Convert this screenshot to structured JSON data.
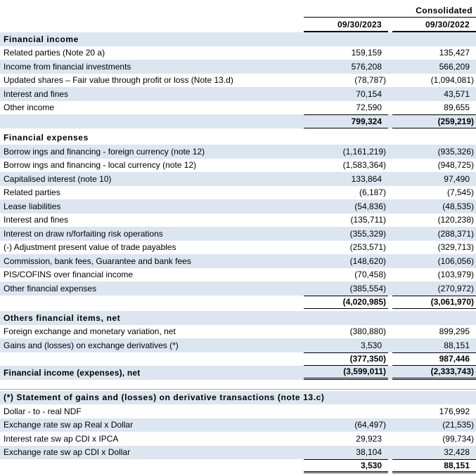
{
  "header": {
    "group_label": "Consolidated",
    "col1": "09/30/2023",
    "col2": "09/30/2022"
  },
  "colors": {
    "band": "#dce6f1",
    "text": "#000000",
    "total_border": "#000000",
    "separator_rule": "#a6a6a6"
  },
  "rows": [
    {
      "type": "section",
      "shaded": true,
      "label": "Financial income",
      "v1": "",
      "v2": ""
    },
    {
      "type": "item",
      "shaded": false,
      "label": "Related parties (Note 20 a)",
      "v1": "159,159",
      "v2": "135,427"
    },
    {
      "type": "item",
      "shaded": true,
      "label": "Income from financial investments",
      "v1": "576,208",
      "v2": "566,209"
    },
    {
      "type": "item",
      "shaded": false,
      "label": "Updated shares – Fair value through profit or loss (Note 13.d)",
      "v1": "(78,787)",
      "v2": "(1,094,081)"
    },
    {
      "type": "item",
      "shaded": true,
      "label": "Interest and fines",
      "v1": "70,154",
      "v2": "43,571"
    },
    {
      "type": "item",
      "shaded": false,
      "label": "Other income",
      "v1": "72,590",
      "v2": "89,655"
    },
    {
      "type": "total",
      "shaded": true,
      "label": "",
      "v1": "799,324",
      "v2": "(259,219)"
    },
    {
      "type": "gap",
      "h": 4
    },
    {
      "type": "section",
      "shaded": false,
      "label": "Financial expenses",
      "v1": "",
      "v2": ""
    },
    {
      "type": "item",
      "shaded": true,
      "label": "Borrow ings and financing - foreign currency (note 12)",
      "v1": "(1,161,219)",
      "v2": "(935,326)"
    },
    {
      "type": "item",
      "shaded": false,
      "label": "Borrow ings and financing - local currency (note 12)",
      "v1": "(1,583,364)",
      "v2": "(948,725)"
    },
    {
      "type": "item",
      "shaded": true,
      "label": "Capitalised interest (note 10)",
      "v1": "133,864",
      "v2": "97,490"
    },
    {
      "type": "item",
      "shaded": false,
      "label": "Related parties",
      "v1": "(6,187)",
      "v2": "(7,545)"
    },
    {
      "type": "item",
      "shaded": true,
      "label": "Lease liabilities",
      "v1": "(54,836)",
      "v2": "(48,535)"
    },
    {
      "type": "item",
      "shaded": false,
      "label": "Interest and fines",
      "v1": "(135,711)",
      "v2": "(120,238)"
    },
    {
      "type": "item",
      "shaded": true,
      "label": "Interest on draw n/forfaiting risk operations",
      "v1": "(355,329)",
      "v2": "(288,371)"
    },
    {
      "type": "item",
      "shaded": false,
      "label": "(-) Adjustment present value of trade payables",
      "v1": "(253,571)",
      "v2": "(329,713)"
    },
    {
      "type": "item",
      "shaded": true,
      "label": "Commission, bank fees, Guarantee and bank fees",
      "v1": "(148,620)",
      "v2": "(106,056)"
    },
    {
      "type": "item",
      "shaded": false,
      "label": "PIS/COFINS over financial income",
      "v1": "(70,458)",
      "v2": "(103,979)"
    },
    {
      "type": "item",
      "shaded": true,
      "label": "Other financial expenses",
      "v1": "(385,554)",
      "v2": "(270,972)"
    },
    {
      "type": "total",
      "shaded": false,
      "label": "",
      "v1": "(4,020,985)",
      "v2": "(3,061,970)"
    },
    {
      "type": "gap",
      "h": 3
    },
    {
      "type": "section",
      "shaded": true,
      "label": "Others financial items, net",
      "v1": "",
      "v2": ""
    },
    {
      "type": "item",
      "shaded": false,
      "label": "Foreign exchange and monetary variation, net",
      "v1": "(380,880)",
      "v2": "899,295"
    },
    {
      "type": "item",
      "shaded": true,
      "label": "Gains and (losses) on exchange derivatives (*)",
      "v1": "3,530",
      "v2": "88,151"
    },
    {
      "type": "total",
      "shaded": false,
      "label": "",
      "v1": "(377,350)",
      "v2": "987,446"
    },
    {
      "type": "net",
      "shaded": true,
      "label": "Financial income (expenses), net",
      "v1": "(3,599,011)",
      "v2": "(2,333,743)"
    },
    {
      "type": "gap",
      "h": 13
    },
    {
      "type": "rule"
    },
    {
      "type": "gap",
      "h": 2
    },
    {
      "type": "section",
      "shaded": true,
      "label": "(*) Statement of gains and (losses) on derivative transactions (note 13.c)",
      "v1": "",
      "v2": ""
    },
    {
      "type": "item",
      "shaded": false,
      "label": "Dollar - to - real NDF",
      "v1": "",
      "v2": "176,992"
    },
    {
      "type": "item",
      "shaded": true,
      "label": "Exchange rate sw ap Real x Dollar",
      "v1": "(64,497)",
      "v2": "(21,535)"
    },
    {
      "type": "item",
      "shaded": false,
      "label": "Interest rate sw ap CDI x IPCA",
      "v1": "29,923",
      "v2": "(99,734)"
    },
    {
      "type": "item",
      "shaded": true,
      "label": "Exchange rate sw ap CDI x Dollar",
      "v1": "38,104",
      "v2": "32,428"
    },
    {
      "type": "grand",
      "shaded": false,
      "label": "",
      "v1": "3,530",
      "v2": "88,151"
    }
  ]
}
